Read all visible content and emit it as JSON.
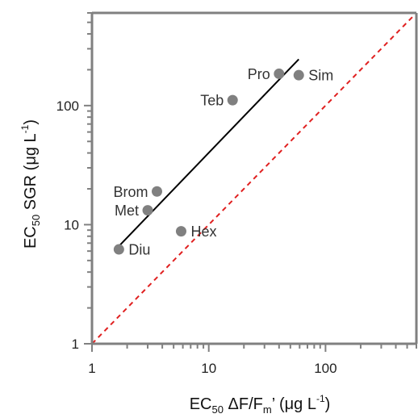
{
  "chart_data": {
    "type": "scatter",
    "x_scale": "log",
    "y_scale": "log",
    "xlim": [
      1,
      600
    ],
    "ylim": [
      1,
      600
    ],
    "grid": false,
    "xlabel": {
      "main": "EC",
      "sub": "50",
      "mid": " ΔF/F",
      "sub2": "m",
      "tail": "’ (μg L",
      "sup": "-1",
      "end": ")"
    },
    "ylabel": {
      "main": "EC",
      "sub": "50",
      "mid": " SGR (μg L",
      "sup": "-1",
      "end": ")"
    },
    "x_ticks": [
      {
        "value": 1,
        "label": "1"
      },
      {
        "value": 10,
        "label": "10"
      },
      {
        "value": 100,
        "label": "100"
      }
    ],
    "y_ticks": [
      {
        "value": 1,
        "label": "1"
      },
      {
        "value": 10,
        "label": "10"
      },
      {
        "value": 100,
        "label": "100"
      }
    ],
    "points": [
      {
        "label": "Pro",
        "x": 40,
        "y": 185,
        "label_side": "left"
      },
      {
        "label": "Sim",
        "x": 59,
        "y": 180,
        "label_side": "right"
      },
      {
        "label": "Teb",
        "x": 16,
        "y": 111,
        "label_side": "left"
      },
      {
        "label": "Brom",
        "x": 3.6,
        "y": 19,
        "label_side": "left"
      },
      {
        "label": "Met",
        "x": 3.0,
        "y": 13.2,
        "label_side": "left"
      },
      {
        "label": "Hex",
        "x": 5.8,
        "y": 8.8,
        "label_side": "right"
      },
      {
        "label": "Diu",
        "x": 1.7,
        "y": 6.2,
        "label_side": "right"
      }
    ],
    "fit_line": {
      "x1": 1.7,
      "y1": 6.6,
      "x2": 59,
      "y2": 245,
      "color": "#000000"
    },
    "identity_line": {
      "x1": 1,
      "y1": 1,
      "x2": 600,
      "y2": 600,
      "color": "#e02020",
      "style": "dashed"
    },
    "point_color": "#808080",
    "axis_color": "#808080"
  }
}
